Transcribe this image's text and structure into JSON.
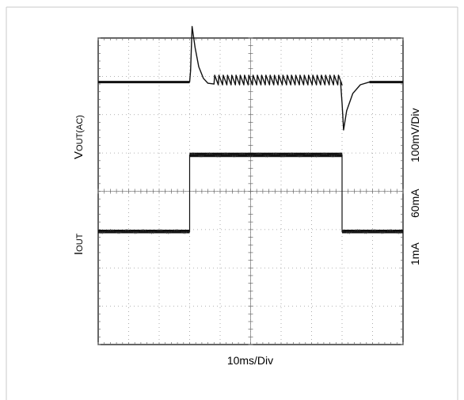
{
  "chart_data": {
    "type": "line",
    "title": "",
    "xlabel": "10ms/Div",
    "ylabel_left": {
      "upper": {
        "main": "V",
        "sub": "OUT(AC)"
      },
      "lower": {
        "main": "I",
        "sub": "OUT"
      }
    },
    "ylabel_right": {
      "upper": "100mV/Div",
      "mid": "60mA",
      "low": "1mA"
    },
    "grid": true,
    "divisions": {
      "x": 10,
      "y": 8
    },
    "x_range_div": [
      0,
      10
    ],
    "y_range_div": [
      0,
      8
    ],
    "series": [
      {
        "trace": "vout",
        "baseline_div": 6.85,
        "points": [
          [
            0.0,
            6.85
          ],
          [
            3.0,
            6.85
          ],
          [
            3.03,
            7.15
          ],
          [
            3.08,
            8.3
          ],
          [
            3.18,
            7.75
          ],
          [
            3.3,
            7.25
          ],
          [
            3.45,
            6.95
          ],
          [
            3.6,
            6.82
          ],
          [
            3.8,
            6.8
          ]
        ],
        "ripple": {
          "from": 3.8,
          "to": 7.95,
          "period": 0.14,
          "amp": 0.18
        },
        "tail": [
          [
            7.95,
            6.85
          ],
          [
            8.0,
            6.3
          ],
          [
            8.05,
            5.6
          ],
          [
            8.15,
            6.1
          ],
          [
            8.35,
            6.55
          ],
          [
            8.6,
            6.78
          ],
          [
            8.9,
            6.85
          ],
          [
            10.0,
            6.85
          ]
        ]
      },
      {
        "trace": "iout",
        "points": [
          [
            0.0,
            2.95
          ],
          [
            3.0,
            2.95
          ],
          [
            3.0,
            4.95
          ],
          [
            8.0,
            4.95
          ],
          [
            8.0,
            2.95
          ],
          [
            10.0,
            2.95
          ]
        ]
      }
    ]
  }
}
